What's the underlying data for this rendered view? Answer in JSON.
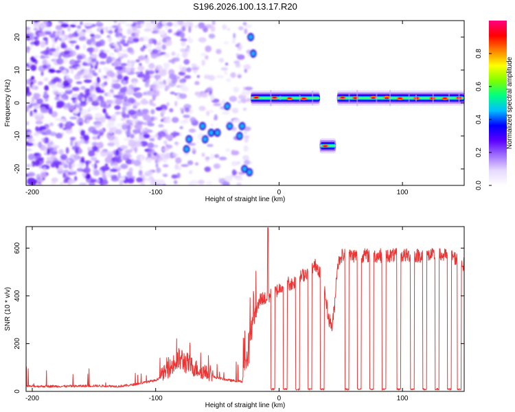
{
  "title": "S196.2026.100.13.17.R20",
  "chart_data": [
    {
      "type": "heatmap",
      "xlabel": "Height of straight line (km)",
      "ylabel": "Frequency (Hz)",
      "xlim": [
        -205,
        150
      ],
      "ylim": [
        -25,
        25
      ],
      "xticks": [
        -200,
        -100,
        0,
        100
      ],
      "yticks": [
        -20,
        -10,
        0,
        10,
        20
      ],
      "colorbar": {
        "label": "Normalized spectral amplitude",
        "range": [
          0,
          1
        ],
        "ticks": [
          0.0,
          0.2,
          0.4,
          0.6,
          0.8
        ],
        "tick_labels": [
          "0.0",
          "0.2",
          "0.4",
          "0.6",
          "0.8"
        ],
        "colormap": [
          "#ffffff",
          "#e6d9ff",
          "#a070ff",
          "#5a00ff",
          "#0000ff",
          "#00c0ff",
          "#00ff80",
          "#80ff00",
          "#ffff00",
          "#ff8000",
          "#ff0000",
          "#ff0080"
        ]
      },
      "tone_segments": [
        {
          "x_start": -23,
          "x_end": 33,
          "freq": 1.5,
          "peak_amplitude": 0.85
        },
        {
          "x_start": 33,
          "x_end": 46,
          "freq": -13,
          "peak_amplitude": 0.85
        },
        {
          "x_start": 47,
          "x_end": 150,
          "freq": 1.5,
          "peak_amplitude": 0.85
        }
      ],
      "noise_region": {
        "x_start": -205,
        "x_end": -23,
        "amplitude": 0.25
      }
    },
    {
      "type": "line",
      "xlabel": "Height of straight line (km)",
      "ylabel": "SNR (10 * v/v)",
      "xlim": [
        -205,
        150
      ],
      "ylim": [
        0,
        690
      ],
      "xticks": [
        -200,
        -100,
        0,
        100
      ],
      "yticks": [
        0,
        200,
        400,
        600
      ],
      "color": "#ee3333",
      "series": [
        {
          "name": "SNR",
          "x": [
            -205,
            -190,
            -170,
            -150,
            -130,
            -120,
            -110,
            -100,
            -90,
            -80,
            -70,
            -60,
            -50,
            -40,
            -30,
            -25,
            -20,
            -15,
            -10,
            -5,
            0,
            5,
            10,
            15,
            20,
            25,
            30,
            35,
            40,
            43,
            45,
            47,
            50,
            60,
            70,
            80,
            90,
            100,
            110,
            120,
            130,
            140,
            150
          ],
          "y": [
            20,
            20,
            20,
            22,
            20,
            25,
            35,
            45,
            80,
            120,
            90,
            70,
            55,
            45,
            40,
            150,
            300,
            380,
            380,
            400,
            420,
            450,
            440,
            460,
            480,
            500,
            520,
            480,
            300,
            260,
            350,
            510,
            560,
            560,
            560,
            560,
            560,
            560,
            560,
            560,
            560,
            560,
            520
          ]
        }
      ],
      "dropouts": [
        -5,
        5,
        15,
        25,
        35,
        55,
        65,
        75,
        85,
        97,
        108,
        118,
        128,
        138,
        146
      ]
    }
  ]
}
